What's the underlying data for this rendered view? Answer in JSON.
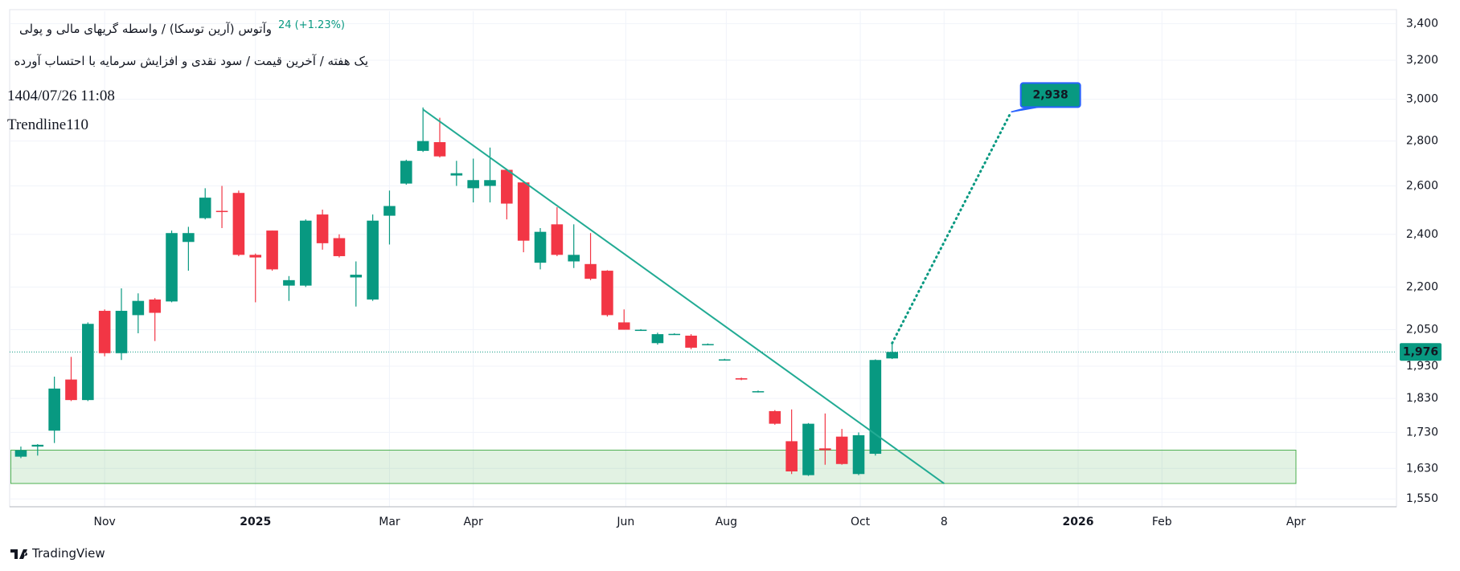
{
  "chart_data": {
    "type": "candlestick",
    "symbol": "وآتوس (آرین توسکا) / واسطه گریهای مالی و پولی",
    "change": "24 (+1.23%)",
    "subtitle": "یک هفته / آخرین قیمت / سود نقدی و افزایش سرمایه با احتساب آورده",
    "datetime": "1404/07/26 11:08",
    "study": "Trendline110",
    "brand": "TradingView",
    "x": [
      0,
      1,
      2,
      3,
      4,
      5,
      6,
      7,
      8,
      9,
      10,
      11,
      12,
      13,
      14,
      15,
      16,
      17,
      18,
      19,
      20,
      21,
      22,
      23,
      24,
      25,
      26,
      27,
      28,
      29,
      30,
      31,
      32,
      33,
      34,
      35,
      36,
      37,
      38,
      39,
      40,
      41,
      42,
      43,
      44,
      45,
      46,
      47,
      48,
      49,
      50,
      51,
      52
    ],
    "open": [
      1662,
      1690,
      1735,
      1888,
      1825,
      2115,
      1972,
      2100,
      2155,
      2148,
      2370,
      2465,
      2495,
      2570,
      2320,
      2415,
      2205,
      2205,
      2480,
      2385,
      2235,
      2155,
      2475,
      2610,
      2755,
      2795,
      2645,
      2590,
      2600,
      2670,
      2615,
      2290,
      2440,
      2295,
      2285,
      2260,
      2075,
      2048,
      2005,
      2035,
      2030,
      2000,
      1950,
      1892,
      1850,
      1792,
      1705,
      1612,
      1685,
      1718,
      1615,
      1670,
      1955
    ],
    "high": [
      1690,
      1697,
      1897,
      1960,
      2075,
      2120,
      2195,
      2177,
      2160,
      2415,
      2430,
      2590,
      2600,
      2580,
      2325,
      2415,
      2240,
      2460,
      2500,
      2400,
      2295,
      2480,
      2580,
      2715,
      2960,
      2910,
      2710,
      2720,
      2770,
      2675,
      2620,
      2425,
      2510,
      2440,
      2405,
      2262,
      2120,
      2052,
      2040,
      2038,
      2035,
      2004,
      1954,
      1894,
      1854,
      1795,
      1797,
      1757,
      1785,
      1740,
      1730,
      1952,
      2005
    ],
    "low": [
      1658,
      1665,
      1700,
      1822,
      1822,
      1962,
      1950,
      2038,
      2012,
      2145,
      2260,
      2460,
      2425,
      2315,
      2145,
      2260,
      2150,
      2200,
      2340,
      2310,
      2130,
      2150,
      2360,
      2605,
      2750,
      2725,
      2600,
      2530,
      2530,
      2460,
      2330,
      2265,
      2315,
      2270,
      2225,
      2095,
      2050,
      2046,
      2000,
      2033,
      1985,
      1998,
      1948,
      1886,
      1848,
      1752,
      1615,
      1610,
      1640,
      1640,
      1612,
      1665,
      1953
    ],
    "close": [
      1680,
      1695,
      1860,
      1825,
      2070,
      1972,
      2115,
      2150,
      2108,
      2405,
      2405,
      2550,
      2490,
      2320,
      2310,
      2265,
      2225,
      2455,
      2365,
      2315,
      2245,
      2455,
      2515,
      2710,
      2800,
      2730,
      2655,
      2625,
      2625,
      2525,
      2375,
      2410,
      2320,
      2320,
      2230,
      2100,
      2050,
      2050,
      2035,
      2036,
      1990,
      2002,
      1952,
      1888,
      1852,
      1755,
      1622,
      1755,
      1680,
      1642,
      1722,
      1950,
      1976
    ],
    "up_color": "#089981",
    "down_color": "#f23645",
    "log": true,
    "grid": true,
    "ylim": [
      1530,
      3470
    ],
    "yticks": [
      {
        "value": 1550,
        "label": "1,550"
      },
      {
        "value": 1630,
        "label": "1,630"
      },
      {
        "value": 1730,
        "label": "1,730"
      },
      {
        "value": 1830,
        "label": "1,830"
      },
      {
        "value": 1930,
        "label": "1,930"
      },
      {
        "value": 2050,
        "label": "2,050"
      },
      {
        "value": 2200,
        "label": "2,200"
      },
      {
        "value": 2400,
        "label": "2,400"
      },
      {
        "value": 2600,
        "label": "2,600"
      },
      {
        "value": 2800,
        "label": "2,800"
      },
      {
        "value": 3000,
        "label": "3,000"
      },
      {
        "value": 3200,
        "label": "3,200"
      },
      {
        "value": 3400,
        "label": "3,400"
      }
    ],
    "xlim": [
      -0.67,
      82.1
    ],
    "xticks": [
      {
        "value": 5,
        "label": "Nov"
      },
      {
        "value": 14,
        "label": "2025"
      },
      {
        "value": 22,
        "label": "Mar"
      },
      {
        "value": 27,
        "label": "Apr"
      },
      {
        "value": 36.1,
        "label": "Jun"
      },
      {
        "value": 42.1,
        "label": "Aug"
      },
      {
        "value": 50.1,
        "label": "Oct"
      },
      {
        "value": 55.1,
        "label": "8"
      },
      {
        "value": 63.1,
        "label": "2026"
      },
      {
        "value": 68.1,
        "label": "Feb"
      },
      {
        "value": 76.1,
        "label": "Apr"
      }
    ],
    "price_line": {
      "value": 1976,
      "label": "1,976"
    },
    "trendline": {
      "x": [
        24,
        55.1
      ],
      "y": [
        2950,
        1590
      ]
    },
    "zone": {
      "x": [
        -0.6,
        76.1
      ],
      "y": [
        1590,
        1680
      ]
    },
    "target": {
      "x": [
        52,
        59.1
      ],
      "y": [
        2005,
        2938
      ],
      "value": 2938,
      "label": "2,938"
    }
  }
}
